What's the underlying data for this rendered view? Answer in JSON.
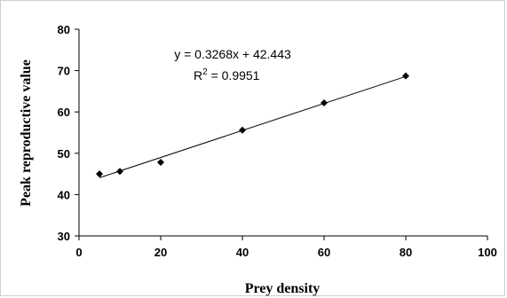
{
  "chart_data": {
    "type": "scatter",
    "xlabel": "Prey density",
    "ylabel": "Peak reproductive value",
    "xlim": [
      0,
      100
    ],
    "ylim": [
      30,
      80
    ],
    "xticks": [
      0,
      20,
      40,
      60,
      80,
      100
    ],
    "yticks": [
      30,
      40,
      50,
      60,
      70,
      80
    ],
    "grid": false,
    "series": [
      {
        "marker": "diamond",
        "color": "#000000",
        "points": [
          {
            "x": 5,
            "y": 45.0
          },
          {
            "x": 10,
            "y": 45.6
          },
          {
            "x": 20,
            "y": 47.8
          },
          {
            "x": 40,
            "y": 55.6
          },
          {
            "x": 60,
            "y": 62.2
          },
          {
            "x": 80,
            "y": 68.7
          }
        ]
      }
    ],
    "trendline": {
      "type": "linear",
      "slope": 0.3268,
      "intercept": 42.443,
      "x_range": [
        5,
        80
      ],
      "equation": "y = 0.3268x + 42.443",
      "r2_label": "R",
      "r2_sup": "2",
      "r2_value": " = 0.9951"
    }
  }
}
